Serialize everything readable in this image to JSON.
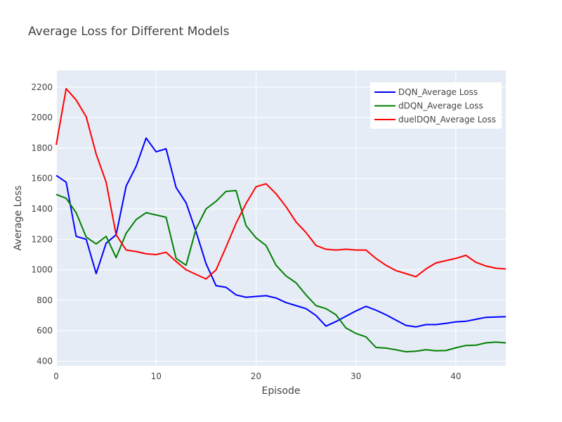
{
  "chart_data": {
    "type": "line",
    "title": "Average Loss for Different Models",
    "xlabel": "Episode",
    "ylabel": "Average Loss",
    "xlim": [
      0,
      45
    ],
    "ylim": [
      370,
      2310
    ],
    "x_ticks": [
      0,
      10,
      20,
      30,
      40
    ],
    "y_ticks": [
      400,
      600,
      800,
      1000,
      1200,
      1400,
      1600,
      1800,
      2000,
      2200
    ],
    "grid": true,
    "legend_position": "top-right",
    "x": [
      0,
      1,
      2,
      3,
      4,
      5,
      6,
      7,
      8,
      9,
      10,
      11,
      12,
      13,
      14,
      15,
      16,
      17,
      18,
      19,
      20,
      21,
      22,
      23,
      24,
      25,
      26,
      27,
      28,
      29,
      30,
      31,
      32,
      33,
      34,
      35,
      36,
      37,
      38,
      39,
      40,
      41,
      42,
      43,
      44,
      45
    ],
    "series": [
      {
        "name": "DQN_Average Loss",
        "color": "#0000ff",
        "values": [
          1620,
          1575,
          1220,
          1200,
          975,
          1175,
          1230,
          1550,
          1680,
          1865,
          1775,
          1795,
          1540,
          1440,
          1250,
          1040,
          895,
          885,
          835,
          820,
          825,
          830,
          815,
          785,
          765,
          745,
          700,
          630,
          660,
          695,
          730,
          760,
          735,
          705,
          670,
          635,
          625,
          640,
          640,
          648,
          658,
          662,
          675,
          688,
          690,
          692
        ]
      },
      {
        "name": "dDQN_Average Loss",
        "color": "#008000",
        "values": [
          1495,
          1470,
          1375,
          1215,
          1170,
          1220,
          1080,
          1240,
          1330,
          1375,
          1360,
          1345,
          1075,
          1030,
          1270,
          1400,
          1450,
          1515,
          1520,
          1290,
          1210,
          1160,
          1030,
          960,
          915,
          835,
          765,
          745,
          705,
          618,
          582,
          560,
          490,
          486,
          475,
          462,
          465,
          475,
          468,
          470,
          488,
          503,
          505,
          520,
          525,
          520
        ]
      },
      {
        "name": "duelDQN_Average Loss",
        "color": "#ff0000",
        "values": [
          1820,
          2190,
          2115,
          2005,
          1760,
          1575,
          1230,
          1130,
          1120,
          1105,
          1100,
          1115,
          1055,
          1000,
          970,
          940,
          1000,
          1150,
          1305,
          1435,
          1545,
          1565,
          1500,
          1415,
          1315,
          1245,
          1160,
          1135,
          1130,
          1135,
          1130,
          1130,
          1075,
          1030,
          995,
          975,
          955,
          1005,
          1045,
          1060,
          1075,
          1095,
          1050,
          1025,
          1010,
          1005
        ]
      }
    ]
  }
}
